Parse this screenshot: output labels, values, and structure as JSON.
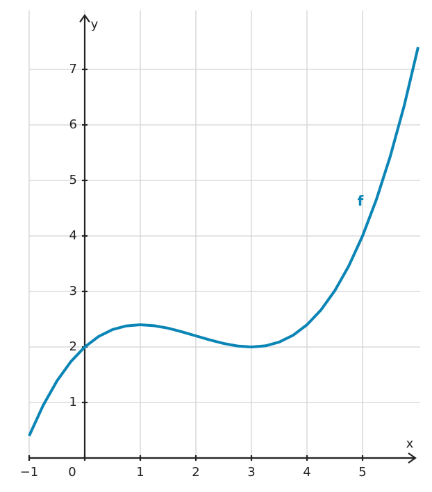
{
  "chart_data": {
    "type": "line",
    "x_label": "x",
    "y_label": "y",
    "x": [
      -1,
      -0.75,
      -0.5,
      -0.25,
      0,
      0.25,
      0.5,
      0.75,
      1,
      1.25,
      1.5,
      1.75,
      2,
      2.25,
      2.5,
      2.75,
      3,
      3.25,
      3.5,
      3.75,
      4,
      4.25,
      4.5,
      4.75,
      5,
      5.25,
      5.5,
      5.75,
      6
    ],
    "series": [
      {
        "name": "f",
        "color": "#0a85b5",
        "values": [
          0.4,
          0.945,
          1.388,
          1.736,
          2,
          2.189,
          2.313,
          2.38,
          2.4,
          2.383,
          2.338,
          2.273,
          2.2,
          2.127,
          2.063,
          2.017,
          2,
          2.02,
          2.088,
          2.211,
          2.4,
          2.664,
          3.013,
          3.455,
          4,
          4.658,
          5.438,
          6.348,
          7.4
        ]
      }
    ],
    "xlim": [
      -1,
      6
    ],
    "ylim": [
      0,
      8.1
    ],
    "xticks": [
      {
        "value": -1,
        "label": "−1"
      },
      0,
      1,
      2,
      3,
      4,
      5
    ],
    "yticks": [
      1,
      2,
      3,
      4,
      5,
      6,
      7
    ],
    "grid": true
  }
}
